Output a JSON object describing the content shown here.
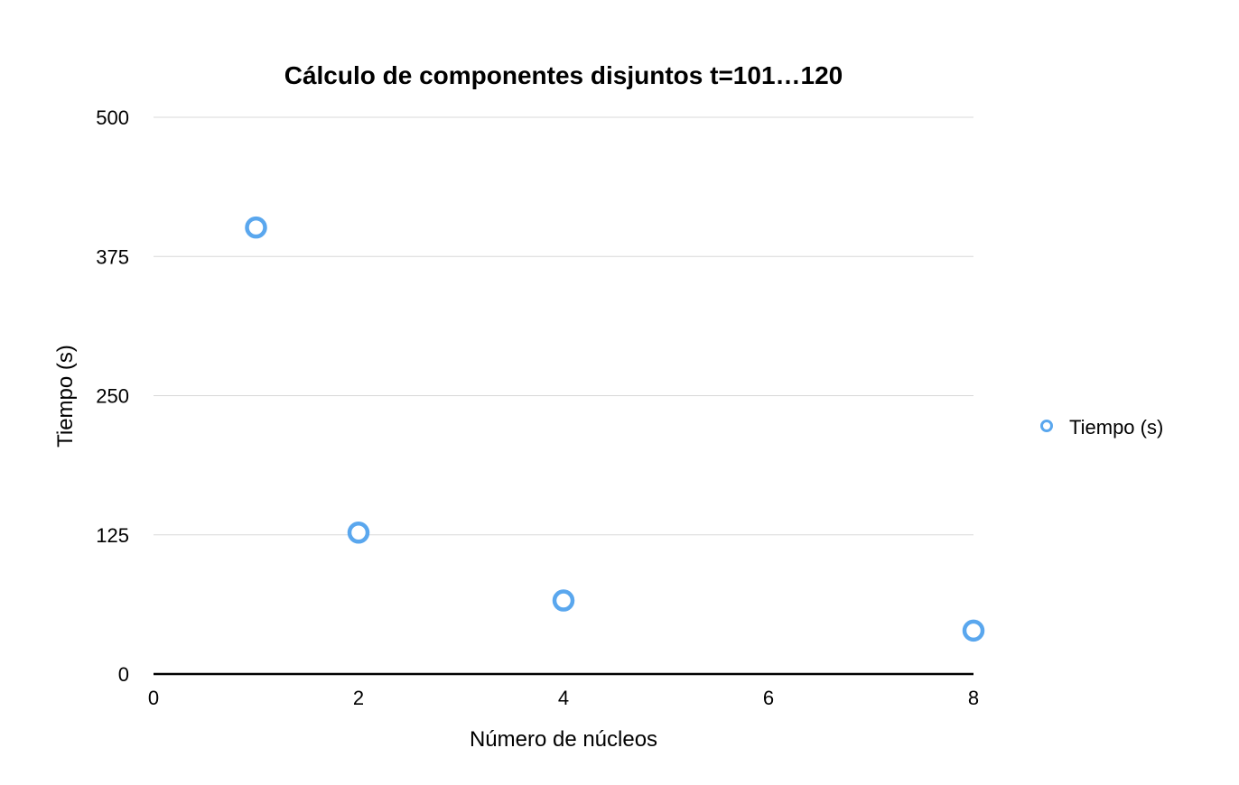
{
  "chart_data": {
    "type": "scatter",
    "title": "Cálculo de componentes disjuntos t=101…120",
    "xlabel": "Número de núcleos",
    "ylabel": "Tiempo (s)",
    "xlim": [
      0,
      8
    ],
    "ylim": [
      0,
      500
    ],
    "x_ticks": [
      0,
      2,
      4,
      6,
      8
    ],
    "y_ticks": [
      0,
      125,
      250,
      375,
      500
    ],
    "grid": true,
    "legend_position": "right",
    "series": [
      {
        "name": "Tiempo (s)",
        "color": "#5aa7ee",
        "marker": "hollow-circle",
        "points": [
          {
            "x": 1,
            "y": 401
          },
          {
            "x": 2,
            "y": 127
          },
          {
            "x": 4,
            "y": 66
          },
          {
            "x": 8,
            "y": 39
          }
        ]
      }
    ]
  }
}
